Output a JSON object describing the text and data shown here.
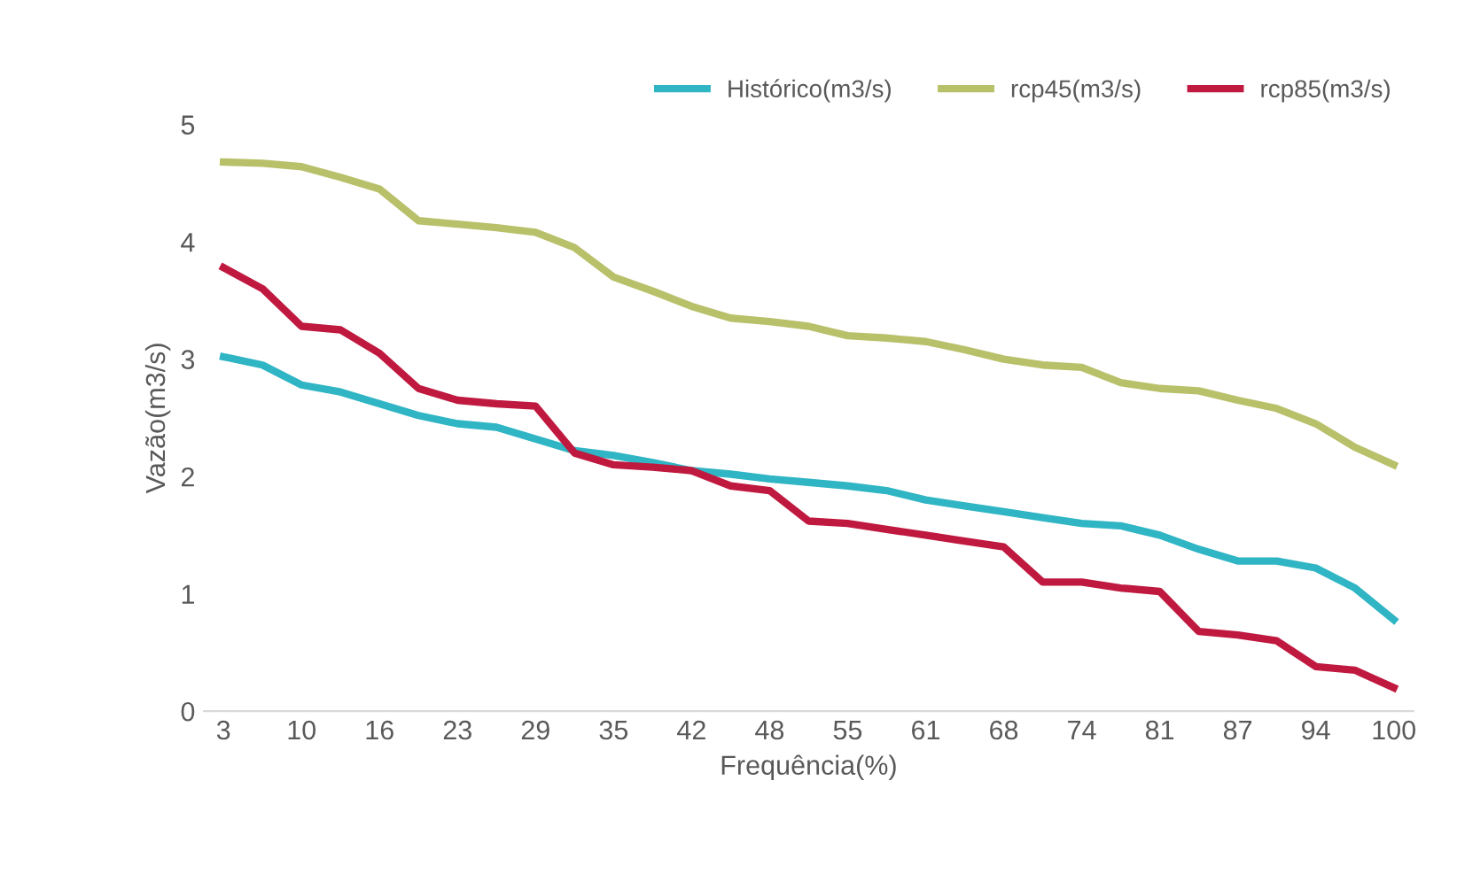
{
  "chart_data": {
    "type": "line",
    "xlabel": "Frequência(%)",
    "ylabel": "Vazão(m3/s)",
    "categories": [
      "3",
      null,
      "10",
      null,
      "16",
      null,
      "23",
      null,
      "29",
      null,
      "35",
      null,
      "42",
      null,
      "48",
      null,
      "55",
      null,
      "61",
      null,
      "68",
      null,
      "74",
      null,
      "81",
      null,
      "87",
      null,
      "94",
      null,
      "100"
    ],
    "series": [
      {
        "name": "Histórico(m3/s)",
        "color": "#2fb5c4",
        "values": [
          3.02,
          2.95,
          2.78,
          2.72,
          2.62,
          2.52,
          2.45,
          2.42,
          2.32,
          2.22,
          2.18,
          2.12,
          2.05,
          2.02,
          1.98,
          1.95,
          1.92,
          1.88,
          1.8,
          1.75,
          1.7,
          1.65,
          1.6,
          1.58,
          1.5,
          1.38,
          1.28,
          1.28,
          1.22,
          1.05,
          0.78
        ]
      },
      {
        "name": "rcp45(m3/s)",
        "color": "#b9c06a",
        "values": [
          4.68,
          4.67,
          4.64,
          4.55,
          4.45,
          4.18,
          4.15,
          4.12,
          4.08,
          3.95,
          3.7,
          3.58,
          3.45,
          3.35,
          3.32,
          3.28,
          3.2,
          3.18,
          3.15,
          3.08,
          3.0,
          2.95,
          2.93,
          2.8,
          2.75,
          2.73,
          2.65,
          2.58,
          2.45,
          2.25,
          2.1
        ]
      },
      {
        "name": "rcp85(m3/s)",
        "color": "#c0193f",
        "values": [
          3.78,
          3.6,
          3.28,
          3.25,
          3.05,
          2.75,
          2.65,
          2.62,
          2.6,
          2.2,
          2.1,
          2.08,
          2.05,
          1.92,
          1.88,
          1.62,
          1.6,
          1.55,
          1.5,
          1.45,
          1.4,
          1.1,
          1.1,
          1.05,
          1.02,
          0.68,
          0.65,
          0.6,
          0.38,
          0.35,
          0.2
        ]
      }
    ],
    "ylim": [
      0,
      5
    ],
    "yticks": [
      0,
      1,
      2,
      3,
      4,
      5
    ],
    "grid": false,
    "legend": "top right",
    "line_style": "solid",
    "marker": "none"
  }
}
